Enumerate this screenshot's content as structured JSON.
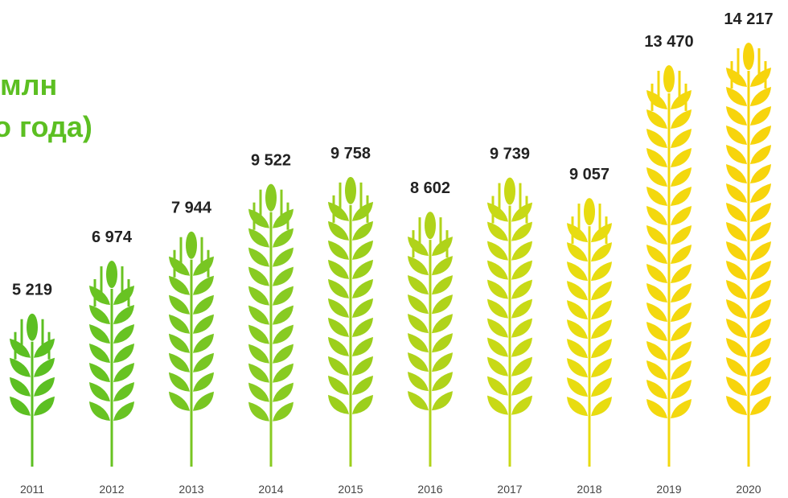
{
  "chart_data": {
    "type": "pictogram",
    "title": "млн",
    "subtitle": "о года)",
    "categories": [
      "2011",
      "2012",
      "2013",
      "2014",
      "2015",
      "2016",
      "2017",
      "2018",
      "2019",
      "2020"
    ],
    "values": [
      5219,
      6974,
      7944,
      9522,
      9758,
      8602,
      9739,
      9057,
      13470,
      14217
    ],
    "value_labels": [
      "5 219",
      "6 974",
      "7 944",
      "9 522",
      "9 758",
      "8 602",
      "9 739",
      "9 057",
      "13 470",
      "14 217"
    ],
    "colors": [
      "#5cbf22",
      "#68c322",
      "#78c622",
      "#88cb22",
      "#9ccf1c",
      "#b0d31a",
      "#c8d916",
      "#e8dc10",
      "#f3d80e",
      "#f7d40c"
    ],
    "title_color": "#5cbf22"
  }
}
